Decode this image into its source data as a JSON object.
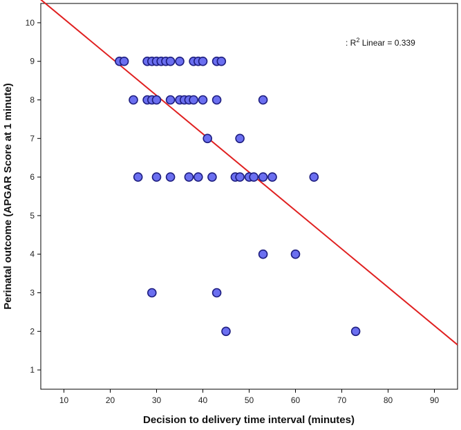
{
  "chart_data": {
    "type": "scatter",
    "xlabel": "Decision to delivery time interval (minutes)",
    "ylabel": "Perinatal outcome (APGAR Score at 1 minute)",
    "xlim": [
      5,
      95
    ],
    "ylim": [
      0.5,
      10.5
    ],
    "xticks": [
      10,
      20,
      30,
      40,
      50,
      60,
      70,
      80,
      90
    ],
    "yticks": [
      1,
      2,
      3,
      4,
      5,
      6,
      7,
      8,
      9,
      10
    ],
    "grid": false,
    "colors": {
      "point_fill": "#6b6ff0",
      "point_stroke": "#1e1e80",
      "fit_line": "#e02020"
    },
    "points": [
      {
        "x": 22,
        "y": 9
      },
      {
        "x": 23,
        "y": 9
      },
      {
        "x": 28,
        "y": 9
      },
      {
        "x": 29,
        "y": 9
      },
      {
        "x": 30,
        "y": 9
      },
      {
        "x": 31,
        "y": 9
      },
      {
        "x": 32,
        "y": 9
      },
      {
        "x": 33,
        "y": 9
      },
      {
        "x": 35,
        "y": 9
      },
      {
        "x": 38,
        "y": 9
      },
      {
        "x": 39,
        "y": 9
      },
      {
        "x": 40,
        "y": 9
      },
      {
        "x": 43,
        "y": 9
      },
      {
        "x": 44,
        "y": 9
      },
      {
        "x": 25,
        "y": 8
      },
      {
        "x": 28,
        "y": 8
      },
      {
        "x": 29,
        "y": 8
      },
      {
        "x": 30,
        "y": 8
      },
      {
        "x": 33,
        "y": 8
      },
      {
        "x": 35,
        "y": 8
      },
      {
        "x": 36,
        "y": 8
      },
      {
        "x": 37,
        "y": 8
      },
      {
        "x": 38,
        "y": 8
      },
      {
        "x": 40,
        "y": 8
      },
      {
        "x": 43,
        "y": 8
      },
      {
        "x": 53,
        "y": 8
      },
      {
        "x": 41,
        "y": 7
      },
      {
        "x": 48,
        "y": 7
      },
      {
        "x": 26,
        "y": 6
      },
      {
        "x": 30,
        "y": 6
      },
      {
        "x": 33,
        "y": 6
      },
      {
        "x": 37,
        "y": 6
      },
      {
        "x": 39,
        "y": 6
      },
      {
        "x": 42,
        "y": 6
      },
      {
        "x": 47,
        "y": 6
      },
      {
        "x": 48,
        "y": 6
      },
      {
        "x": 50,
        "y": 6
      },
      {
        "x": 51,
        "y": 6
      },
      {
        "x": 53,
        "y": 6
      },
      {
        "x": 55,
        "y": 6
      },
      {
        "x": 64,
        "y": 6
      },
      {
        "x": 53,
        "y": 4
      },
      {
        "x": 60,
        "y": 4
      },
      {
        "x": 29,
        "y": 3
      },
      {
        "x": 43,
        "y": 3
      },
      {
        "x": 45,
        "y": 2
      },
      {
        "x": 73,
        "y": 2
      }
    ],
    "fit_line": {
      "x": [
        5,
        95
      ],
      "y": [
        10.6,
        1.65
      ]
    },
    "annotation": {
      "prefix": ": R",
      "sup": "2",
      "suffix": " Linear = 0.339"
    }
  }
}
